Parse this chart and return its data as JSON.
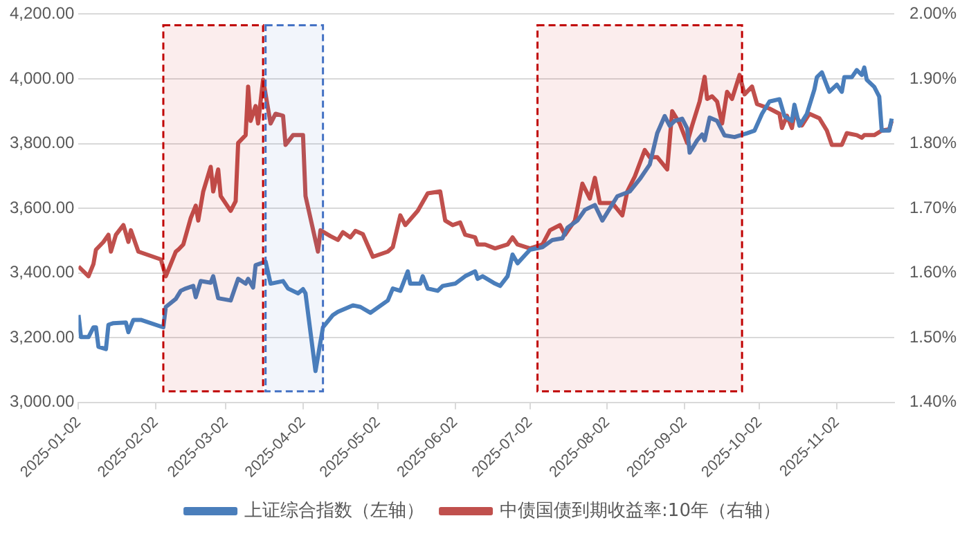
{
  "chart_data": {
    "type": "line",
    "series": [
      {
        "name": "上证综合指数（左轴）",
        "color": "#4a7ebb",
        "axis": "y",
        "x": [
          "2025-01-02",
          "2025-01-03",
          "2025-01-06",
          "2025-01-08",
          "2025-01-09",
          "2025-01-10",
          "2025-01-13",
          "2025-01-14",
          "2025-01-16",
          "2025-01-21",
          "2025-01-22",
          "2025-01-24",
          "2025-01-27",
          "2025-02-05",
          "2025-02-06",
          "2025-02-10",
          "2025-02-12",
          "2025-02-14",
          "2025-02-17",
          "2025-02-18",
          "2025-02-20",
          "2025-02-24",
          "2025-02-25",
          "2025-02-27",
          "2025-03-04",
          "2025-03-07",
          "2025-03-10",
          "2025-03-11",
          "2025-03-13",
          "2025-03-14",
          "2025-03-18",
          "2025-03-20",
          "2025-03-25",
          "2025-03-27",
          "2025-03-31",
          "2025-04-02",
          "2025-04-03",
          "2025-04-07",
          "2025-04-10",
          "2025-04-14",
          "2025-04-16",
          "2025-04-22",
          "2025-04-25",
          "2025-04-29",
          "2025-05-06",
          "2025-05-08",
          "2025-05-11",
          "2025-05-14",
          "2025-05-15",
          "2025-05-19",
          "2025-05-20",
          "2025-05-22",
          "2025-05-26",
          "2025-05-28",
          "2025-06-02",
          "2025-06-06",
          "2025-06-10",
          "2025-06-11",
          "2025-06-13",
          "2025-06-18",
          "2025-06-20",
          "2025-06-23",
          "2025-06-25",
          "2025-06-27",
          "2025-07-02",
          "2025-07-07",
          "2025-07-11",
          "2025-07-15",
          "2025-07-17",
          "2025-07-21",
          "2025-07-24",
          "2025-07-28",
          "2025-07-31",
          "2025-08-06",
          "2025-08-11",
          "2025-08-15",
          "2025-08-19",
          "2025-08-22",
          "2025-08-25",
          "2025-08-27",
          "2025-08-29",
          "2025-09-01",
          "2025-09-03",
          "2025-09-04",
          "2025-09-07",
          "2025-09-09",
          "2025-09-10",
          "2025-09-12",
          "2025-09-15",
          "2025-09-18",
          "2025-09-22",
          "2025-09-27",
          "2025-09-30",
          "2025-10-03",
          "2025-10-06",
          "2025-10-10",
          "2025-10-12",
          "2025-10-15",
          "2025-10-16",
          "2025-10-18",
          "2025-10-21",
          "2025-10-24",
          "2025-10-25",
          "2025-10-27",
          "2025-10-30",
          "2025-11-02",
          "2025-11-04",
          "2025-11-05",
          "2025-11-08",
          "2025-11-10",
          "2025-11-12",
          "2025-11-13",
          "2025-11-14",
          "2025-11-17",
          "2025-11-19",
          "2025-11-20",
          "2025-11-23",
          "2025-11-24"
        ],
        "values": [
          3270,
          3202,
          3202,
          3232,
          3232,
          3172,
          3165,
          3240,
          3245,
          3247,
          3217,
          3255,
          3255,
          3232,
          3295,
          3320,
          3345,
          3352,
          3360,
          3325,
          3375,
          3370,
          3390,
          3322,
          3315,
          3382,
          3367,
          3382,
          3355,
          3424,
          3435,
          3367,
          3375,
          3352,
          3337,
          3350,
          3337,
          3097,
          3232,
          3270,
          3280,
          3300,
          3295,
          3277,
          3315,
          3352,
          3345,
          3405,
          3367,
          3367,
          3390,
          3352,
          3345,
          3360,
          3367,
          3390,
          3405,
          3382,
          3390,
          3367,
          3360,
          3390,
          3457,
          3430,
          3472,
          3480,
          3502,
          3507,
          3540,
          3562,
          3595,
          3610,
          3562,
          3637,
          3652,
          3690,
          3735,
          3832,
          3885,
          3855,
          3870,
          3877,
          3847,
          3772,
          3810,
          3828,
          3810,
          3880,
          3870,
          3825,
          3820,
          3832,
          3840,
          3892,
          3930,
          3937,
          3885,
          3870,
          3920,
          3855,
          3892,
          3967,
          4005,
          4020,
          3960,
          3982,
          3960,
          4005,
          4005,
          4027,
          4012,
          4035,
          3997,
          3975,
          3945,
          3840,
          3840,
          3877
        ]
      },
      {
        "name": "中债国债到期收益率:10年（右轴）",
        "color": "#c0504d",
        "axis": "y2",
        "x": [
          "2025-01-02",
          "2025-01-06",
          "2025-01-08",
          "2025-01-09",
          "2025-01-12",
          "2025-01-14",
          "2025-01-15",
          "2025-01-17",
          "2025-01-20",
          "2025-01-22",
          "2025-01-23",
          "2025-01-24",
          "2025-01-26",
          "2025-02-04",
          "2025-02-06",
          "2025-02-10",
          "2025-02-11",
          "2025-02-13",
          "2025-02-16",
          "2025-02-18",
          "2025-02-19",
          "2025-02-21",
          "2025-02-24",
          "2025-02-25",
          "2025-02-27",
          "2025-02-28",
          "2025-03-04",
          "2025-03-06",
          "2025-03-07",
          "2025-03-10",
          "2025-03-11",
          "2025-03-12",
          "2025-03-14",
          "2025-03-15",
          "2025-03-17",
          "2025-03-20",
          "2025-03-22",
          "2025-03-25",
          "2025-03-26",
          "2025-03-29",
          "2025-04-02",
          "2025-04-03",
          "2025-04-08",
          "2025-04-09",
          "2025-04-13",
          "2025-04-16",
          "2025-04-18",
          "2025-04-21",
          "2025-04-23",
          "2025-04-26",
          "2025-04-30",
          "2025-05-06",
          "2025-05-08",
          "2025-05-11",
          "2025-05-13",
          "2025-05-18",
          "2025-05-22",
          "2025-05-27",
          "2025-05-29",
          "2025-06-01",
          "2025-06-04",
          "2025-06-06",
          "2025-06-10",
          "2025-06-11",
          "2025-06-14",
          "2025-06-18",
          "2025-06-23",
          "2025-06-25",
          "2025-06-27",
          "2025-07-02",
          "2025-07-07",
          "2025-07-10",
          "2025-07-14",
          "2025-07-16",
          "2025-07-20",
          "2025-07-23",
          "2025-07-26",
          "2025-07-28",
          "2025-07-30",
          "2025-08-04",
          "2025-08-08",
          "2025-08-10",
          "2025-08-13",
          "2025-08-17",
          "2025-08-19",
          "2025-08-22",
          "2025-08-26",
          "2025-08-28",
          "2025-08-31",
          "2025-09-03",
          "2025-09-05",
          "2025-09-08",
          "2025-09-10",
          "2025-09-11",
          "2025-09-13",
          "2025-09-15",
          "2025-09-17",
          "2025-09-19",
          "2025-09-21",
          "2025-09-24",
          "2025-09-26",
          "2025-09-29",
          "2025-10-01",
          "2025-10-06",
          "2025-10-10",
          "2025-10-11",
          "2025-10-13",
          "2025-10-15",
          "2025-10-16",
          "2025-10-19",
          "2025-10-22",
          "2025-10-26",
          "2025-10-29",
          "2025-10-31",
          "2025-11-04",
          "2025-11-06",
          "2025-11-10",
          "2025-11-12",
          "2025-11-13",
          "2025-11-17",
          "2025-11-20",
          "2025-11-23",
          "2025-11-24"
        ],
        "values": [
          1.61,
          1.595,
          1.614,
          1.636,
          1.648,
          1.659,
          1.633,
          1.659,
          1.674,
          1.648,
          1.666,
          1.655,
          1.633,
          1.621,
          1.595,
          1.633,
          1.636,
          1.644,
          1.685,
          1.704,
          1.681,
          1.726,
          1.764,
          1.726,
          1.76,
          1.719,
          1.696,
          1.711,
          1.801,
          1.813,
          1.888,
          1.835,
          1.858,
          1.831,
          1.899,
          1.831,
          1.846,
          1.843,
          1.798,
          1.813,
          1.813,
          1.719,
          1.633,
          1.666,
          1.657,
          1.651,
          1.663,
          1.655,
          1.665,
          1.66,
          1.625,
          1.633,
          1.64,
          1.689,
          1.674,
          1.696,
          1.723,
          1.726,
          1.681,
          1.674,
          1.678,
          1.659,
          1.655,
          1.644,
          1.644,
          1.638,
          1.644,
          1.655,
          1.644,
          1.638,
          1.644,
          1.666,
          1.674,
          1.659,
          1.681,
          1.738,
          1.715,
          1.747,
          1.708,
          1.708,
          1.689,
          1.726,
          1.749,
          1.79,
          1.779,
          1.779,
          1.76,
          1.85,
          1.831,
          1.801,
          1.828,
          1.865,
          1.903,
          1.869,
          1.873,
          1.865,
          1.831,
          1.88,
          1.869,
          1.906,
          1.876,
          1.888,
          1.861,
          1.854,
          1.846,
          1.824,
          1.843,
          1.824,
          1.846,
          1.828,
          1.846,
          1.839,
          1.82,
          1.798,
          1.798,
          1.816,
          1.813,
          1.809,
          1.813,
          1.813,
          1.82,
          1.822,
          1.835
        ]
      }
    ],
    "xlim": [
      "2025-01-02",
      "2025-11-25"
    ],
    "xticks": [
      "2025-01-02",
      "2025-02-02",
      "2025-03-02",
      "2025-04-02",
      "2025-05-02",
      "2025-06-02",
      "2025-07-02",
      "2025-08-02",
      "2025-09-02",
      "2025-10-02",
      "2025-11-02"
    ],
    "ylim": [
      3000,
      4200
    ],
    "yticks": [
      {
        "value": 3000,
        "label": "3,000.00"
      },
      {
        "value": 3200,
        "label": "3,200.00"
      },
      {
        "value": 3400,
        "label": "3,400.00"
      },
      {
        "value": 3600,
        "label": "3,600.00"
      },
      {
        "value": 3800,
        "label": "3,800.00"
      },
      {
        "value": 4000,
        "label": "4,000.00"
      },
      {
        "value": 4200,
        "label": "4,200.00"
      }
    ],
    "y2lim": [
      1.4,
      2.0
    ],
    "y2ticks": [
      {
        "value": 1.4,
        "label": "1.40%"
      },
      {
        "value": 1.5,
        "label": "1.50%"
      },
      {
        "value": 1.6,
        "label": "1.60%"
      },
      {
        "value": 1.7,
        "label": "1.70%"
      },
      {
        "value": 1.8,
        "label": "1.80%"
      },
      {
        "value": 1.9,
        "label": "1.90%"
      },
      {
        "value": 2.0,
        "label": "2.00%"
      }
    ],
    "bands": [
      {
        "axis": "x",
        "from": "2025-02-05",
        "to": "2025-03-17",
        "color": "#c00000"
      },
      {
        "axis": "x",
        "from": "2025-03-18",
        "to": "2025-04-10",
        "color": "#4472c4"
      },
      {
        "axis": "x",
        "from": "2025-07-05",
        "to": "2025-09-25",
        "color": "#c00000"
      }
    ],
    "grid": "y",
    "legend": "bottom",
    "marker": "none",
    "line_style": "solid"
  }
}
